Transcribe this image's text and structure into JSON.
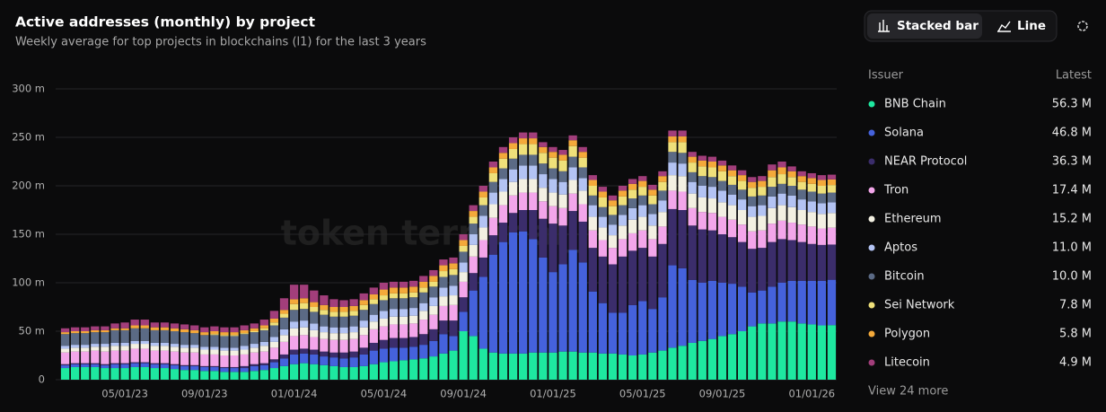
{
  "chart_data": {
    "type": "stacked_bar",
    "title": "Active addresses (monthly) by project",
    "subtitle": "Weekly average for top projects in blockchains (l1) for the last 3 years",
    "watermark": "token terminal_",
    "view_buttons": [
      "Stacked bar",
      "Line"
    ],
    "legend_header": [
      "Issuer",
      "Latest"
    ],
    "more_link": "View 24 more",
    "ylim": [
      0,
      300
    ],
    "yticks": [
      0,
      {
        "value": 50,
        "label": "50 m"
      },
      {
        "value": 100,
        "label": "100 m"
      },
      {
        "value": 150,
        "label": "150 m"
      },
      {
        "value": 200,
        "label": "200 m"
      },
      {
        "value": 250,
        "label": "250 m"
      },
      {
        "value": 300,
        "label": "300 m"
      }
    ],
    "grid": true,
    "categories": [
      null,
      null,
      null,
      null,
      null,
      null,
      "05/01/23",
      null,
      null,
      null,
      null,
      null,
      null,
      null,
      "09/01/23",
      null,
      null,
      null,
      null,
      null,
      null,
      null,
      null,
      "01/01/24",
      null,
      null,
      null,
      null,
      null,
      null,
      null,
      null,
      "05/01/24",
      null,
      null,
      null,
      null,
      null,
      null,
      null,
      "09/01/24",
      null,
      null,
      null,
      null,
      null,
      null,
      null,
      null,
      "01/01/25",
      null,
      null,
      null,
      null,
      null,
      null,
      null,
      null,
      "05/01/25",
      null,
      null,
      null,
      null,
      null,
      null,
      null,
      "09/01/25",
      null,
      null,
      null,
      null,
      null,
      null,
      null,
      null,
      "01/01/26",
      null,
      null
    ],
    "series": [
      {
        "name": "BNB Chain",
        "color": "#1ee8a0",
        "latest": "56.3 M",
        "values": [
          12,
          13,
          13,
          13,
          12,
          12,
          12,
          13,
          13,
          12,
          12,
          11,
          10,
          10,
          9,
          9,
          8,
          8,
          8,
          9,
          10,
          12,
          14,
          16,
          17,
          16,
          15,
          14,
          13,
          13,
          14,
          16,
          18,
          19,
          20,
          21,
          22,
          24,
          27,
          30,
          50,
          45,
          32,
          28,
          27,
          27,
          27,
          28,
          28,
          28,
          29,
          29,
          28,
          28,
          27,
          27,
          26,
          25,
          26,
          28,
          30,
          33,
          35,
          38,
          40,
          42,
          45,
          47,
          50,
          55,
          58,
          58,
          60,
          60,
          58,
          57,
          56,
          56.3
        ]
      },
      {
        "name": "Solana",
        "color": "#4562dc",
        "latest": "46.8 M",
        "values": [
          3,
          3,
          3,
          3,
          3,
          4,
          4,
          4,
          4,
          4,
          4,
          4,
          4,
          4,
          4,
          4,
          4,
          4,
          4,
          5,
          5,
          6,
          8,
          10,
          10,
          10,
          9,
          9,
          9,
          10,
          12,
          14,
          14,
          14,
          13,
          13,
          14,
          16,
          20,
          15,
          20,
          47,
          74,
          101,
          115,
          125,
          126,
          117,
          98,
          83,
          90,
          105,
          93,
          63,
          52,
          42,
          43,
          52,
          55,
          45,
          55,
          85,
          80,
          65,
          60,
          60,
          55,
          52,
          46,
          35,
          34,
          38,
          40,
          42,
          44,
          45,
          46,
          46.8
        ]
      },
      {
        "name": "NEAR Protocol",
        "color": "#3b2d6b",
        "latest": "36.3 M",
        "values": [
          1,
          1,
          1,
          1,
          1,
          1,
          1,
          1,
          1,
          1,
          1,
          1,
          1,
          1,
          1,
          1,
          1,
          1,
          2,
          2,
          2,
          3,
          4,
          5,
          5,
          5,
          5,
          5,
          6,
          6,
          7,
          8,
          9,
          10,
          10,
          10,
          11,
          12,
          14,
          16,
          15,
          18,
          20,
          20,
          20,
          20,
          22,
          30,
          40,
          50,
          40,
          40,
          42,
          45,
          48,
          50,
          58,
          56,
          55,
          54,
          55,
          58,
          60,
          56,
          55,
          52,
          50,
          48,
          46,
          45,
          44,
          46,
          45,
          42,
          40,
          38,
          37,
          36.3
        ]
      },
      {
        "name": "Tron",
        "color": "#f3a6ea",
        "latest": "17.4 M",
        "values": [
          12,
          12,
          12,
          13,
          13,
          13,
          13,
          14,
          14,
          13,
          13,
          13,
          13,
          13,
          12,
          12,
          12,
          12,
          12,
          12,
          12,
          12,
          13,
          14,
          14,
          13,
          13,
          13,
          13,
          13,
          13,
          14,
          14,
          14,
          14,
          14,
          15,
          15,
          15,
          16,
          16,
          17,
          18,
          18,
          18,
          18,
          18,
          18,
          18,
          18,
          18,
          18,
          18,
          18,
          17,
          17,
          18,
          18,
          18,
          18,
          18,
          19,
          19,
          18,
          18,
          18,
          18,
          18,
          18,
          18,
          18,
          19,
          19,
          18,
          18,
          18,
          17,
          17.4
        ]
      },
      {
        "name": "Ethereum",
        "color": "#f3f0e2",
        "latest": "15.2 M",
        "values": [
          4,
          4,
          4,
          4,
          5,
          5,
          5,
          5,
          5,
          5,
          5,
          5,
          5,
          5,
          5,
          5,
          5,
          5,
          5,
          5,
          6,
          6,
          7,
          8,
          8,
          7,
          7,
          7,
          7,
          7,
          8,
          8,
          8,
          8,
          8,
          8,
          9,
          9,
          10,
          10,
          10,
          12,
          13,
          14,
          14,
          14,
          14,
          14,
          14,
          14,
          14,
          14,
          14,
          14,
          13,
          13,
          14,
          14,
          14,
          14,
          15,
          16,
          16,
          15,
          15,
          15,
          15,
          15,
          15,
          15,
          15,
          16,
          16,
          16,
          15,
          15,
          15,
          15.2
        ]
      },
      {
        "name": "Aptos",
        "color": "#b3c3f3",
        "latest": "11.0 M",
        "values": [
          3,
          3,
          3,
          3,
          3,
          3,
          3,
          3,
          3,
          3,
          3,
          3,
          3,
          3,
          3,
          3,
          3,
          3,
          4,
          4,
          4,
          5,
          6,
          7,
          7,
          7,
          6,
          6,
          6,
          6,
          7,
          7,
          8,
          8,
          8,
          8,
          8,
          9,
          9,
          10,
          10,
          11,
          12,
          12,
          13,
          13,
          14,
          14,
          14,
          14,
          13,
          13,
          13,
          12,
          11,
          11,
          11,
          12,
          12,
          12,
          12,
          13,
          13,
          12,
          12,
          12,
          12,
          11,
          11,
          11,
          11,
          12,
          12,
          12,
          11,
          11,
          11,
          11.0
        ]
      },
      {
        "name": "Bitcoin",
        "color": "#5b6a85",
        "latest": "10.0 M",
        "values": [
          12,
          12,
          12,
          12,
          12,
          13,
          13,
          13,
          13,
          13,
          13,
          13,
          13,
          12,
          12,
          12,
          12,
          12,
          12,
          12,
          12,
          12,
          12,
          12,
          12,
          12,
          12,
          11,
          11,
          11,
          11,
          11,
          11,
          11,
          11,
          11,
          11,
          11,
          11,
          11,
          11,
          11,
          11,
          11,
          11,
          11,
          11,
          11,
          11,
          11,
          11,
          11,
          11,
          10,
          10,
          10,
          10,
          10,
          10,
          10,
          10,
          11,
          11,
          10,
          10,
          10,
          10,
          10,
          10,
          10,
          10,
          10,
          10,
          10,
          10,
          10,
          10,
          10.0
        ]
      },
      {
        "name": "Sei Network",
        "color": "#efe07a",
        "latest": "7.8 M",
        "values": [
          0,
          0,
          0,
          0,
          0,
          0,
          0,
          0,
          0,
          0,
          0,
          0,
          0,
          0,
          0,
          1,
          1,
          1,
          1,
          1,
          2,
          3,
          4,
          6,
          6,
          5,
          5,
          5,
          5,
          5,
          5,
          5,
          5,
          5,
          5,
          5,
          5,
          5,
          6,
          6,
          6,
          7,
          8,
          9,
          10,
          10,
          11,
          11,
          11,
          11,
          11,
          11,
          10,
          10,
          10,
          9,
          9,
          9,
          9,
          9,
          9,
          10,
          11,
          10,
          10,
          10,
          10,
          9,
          9,
          9,
          9,
          10,
          10,
          9,
          8,
          8,
          8,
          7.8
        ]
      },
      {
        "name": "Polygon",
        "color": "#f4a93a",
        "latest": "5.8 M",
        "values": [
          2,
          2,
          2,
          2,
          2,
          2,
          2,
          3,
          3,
          3,
          3,
          3,
          3,
          3,
          3,
          3,
          3,
          3,
          3,
          3,
          3,
          4,
          4,
          5,
          5,
          5,
          5,
          5,
          5,
          5,
          5,
          5,
          6,
          6,
          6,
          6,
          6,
          6,
          6,
          6,
          6,
          6,
          6,
          6,
          6,
          6,
          6,
          6,
          6,
          6,
          6,
          6,
          6,
          6,
          6,
          6,
          6,
          6,
          6,
          6,
          6,
          6,
          6,
          6,
          6,
          6,
          6,
          6,
          6,
          6,
          6,
          7,
          7,
          6,
          6,
          6,
          6,
          5.8
        ]
      },
      {
        "name": "Litecoin",
        "color": "#a23e7b",
        "latest": "4.9 M",
        "values": [
          4,
          4,
          4,
          4,
          4,
          5,
          6,
          6,
          6,
          5,
          5,
          5,
          5,
          5,
          5,
          5,
          5,
          5,
          5,
          5,
          6,
          8,
          12,
          15,
          14,
          12,
          10,
          8,
          7,
          7,
          7,
          7,
          7,
          6,
          6,
          6,
          6,
          6,
          6,
          6,
          6,
          6,
          6,
          6,
          6,
          6,
          6,
          6,
          5,
          5,
          5,
          5,
          5,
          5,
          5,
          5,
          5,
          5,
          5,
          5,
          5,
          6,
          6,
          5,
          5,
          5,
          5,
          5,
          5,
          5,
          5,
          6,
          6,
          5,
          5,
          5,
          5,
          4.9
        ]
      }
    ]
  }
}
